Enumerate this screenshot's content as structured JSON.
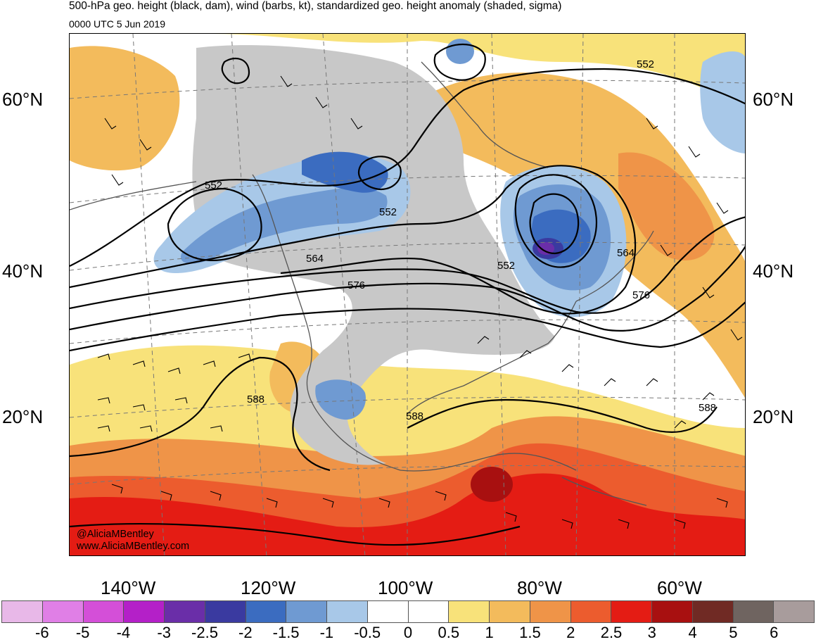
{
  "header": {
    "title": "500-hPa geo. height (black, dam), wind (barbs, kt), standardized geo. height anomaly (shaded, sigma)",
    "valid_time": "0000 UTC 5 Jun 2019"
  },
  "map": {
    "latitude_labels": [
      "60°N",
      "40°N",
      "20°N"
    ],
    "longitude_labels": [
      "140°W",
      "120°W",
      "100°W",
      "80°W",
      "60°W"
    ],
    "contour_labels": [
      "552",
      "552",
      "552",
      "564",
      "552",
      "564",
      "576",
      "576",
      "588",
      "588",
      "588"
    ],
    "credit_handle": "@AliciaMBentley",
    "credit_url": "www.AliciaMBentley.com"
  },
  "colorbar": {
    "tick_labels": [
      "-6",
      "-5",
      "-4",
      "-3",
      "-2.5",
      "-2",
      "-1.5",
      "-1",
      "-0.5",
      "0",
      "0.5",
      "1",
      "1.5",
      "2",
      "2.5",
      "3",
      "4",
      "5",
      "6"
    ],
    "colors": [
      "#e8b8e8",
      "#e07fe6",
      "#d44fd8",
      "#b420c8",
      "#6a2ea8",
      "#3a3aa0",
      "#3b6cc0",
      "#6f9ad2",
      "#a8c8e8",
      "#ffffff",
      "#ffffff",
      "#f8e27a",
      "#f3bb5c",
      "#ef9448",
      "#ec5c2e",
      "#e41c14",
      "#a81010",
      "#702a24",
      "#6f6460",
      "#a89c9c"
    ]
  }
}
